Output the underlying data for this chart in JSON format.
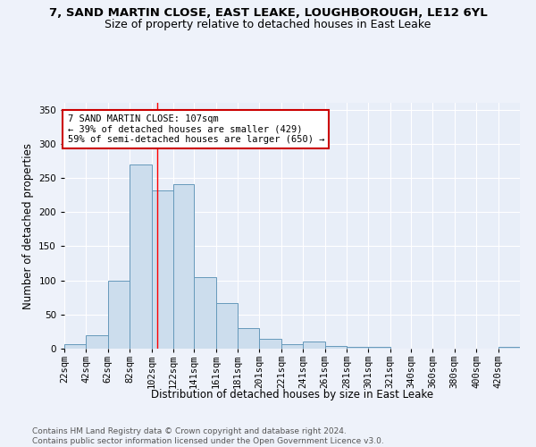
{
  "title": "7, SAND MARTIN CLOSE, EAST LEAKE, LOUGHBOROUGH, LE12 6YL",
  "subtitle": "Size of property relative to detached houses in East Leake",
  "xlabel": "Distribution of detached houses by size in East Leake",
  "ylabel": "Number of detached properties",
  "bar_color": "#ccdded",
  "bar_edge_color": "#6699bb",
  "background_color": "#e8eef8",
  "grid_color": "#ffffff",
  "bin_labels": [
    "22sqm",
    "42sqm",
    "62sqm",
    "82sqm",
    "102sqm",
    "122sqm",
    "141sqm",
    "161sqm",
    "181sqm",
    "201sqm",
    "221sqm",
    "241sqm",
    "261sqm",
    "281sqm",
    "301sqm",
    "321sqm",
    "340sqm",
    "360sqm",
    "380sqm",
    "400sqm",
    "420sqm"
  ],
  "bar_heights": [
    7,
    20,
    99,
    270,
    232,
    241,
    105,
    67,
    30,
    15,
    7,
    11,
    4,
    3,
    3,
    0,
    0,
    0,
    0,
    0,
    3
  ],
  "bin_edges": [
    22,
    42,
    62,
    82,
    102,
    122,
    141,
    161,
    181,
    201,
    221,
    241,
    261,
    281,
    301,
    321,
    340,
    360,
    380,
    400,
    420,
    440
  ],
  "red_line_x": 107,
  "annotation_text": "7 SAND MARTIN CLOSE: 107sqm\n← 39% of detached houses are smaller (429)\n59% of semi-detached houses are larger (650) →",
  "annotation_box_color": "#ffffff",
  "annotation_border_color": "#cc0000",
  "ylim": [
    0,
    360
  ],
  "yticks": [
    0,
    50,
    100,
    150,
    200,
    250,
    300,
    350
  ],
  "footer_text": "Contains HM Land Registry data © Crown copyright and database right 2024.\nContains public sector information licensed under the Open Government Licence v3.0.",
  "title_fontsize": 9.5,
  "subtitle_fontsize": 9,
  "axis_label_fontsize": 8.5,
  "tick_fontsize": 7.5,
  "annotation_fontsize": 7.5,
  "footer_fontsize": 6.5
}
